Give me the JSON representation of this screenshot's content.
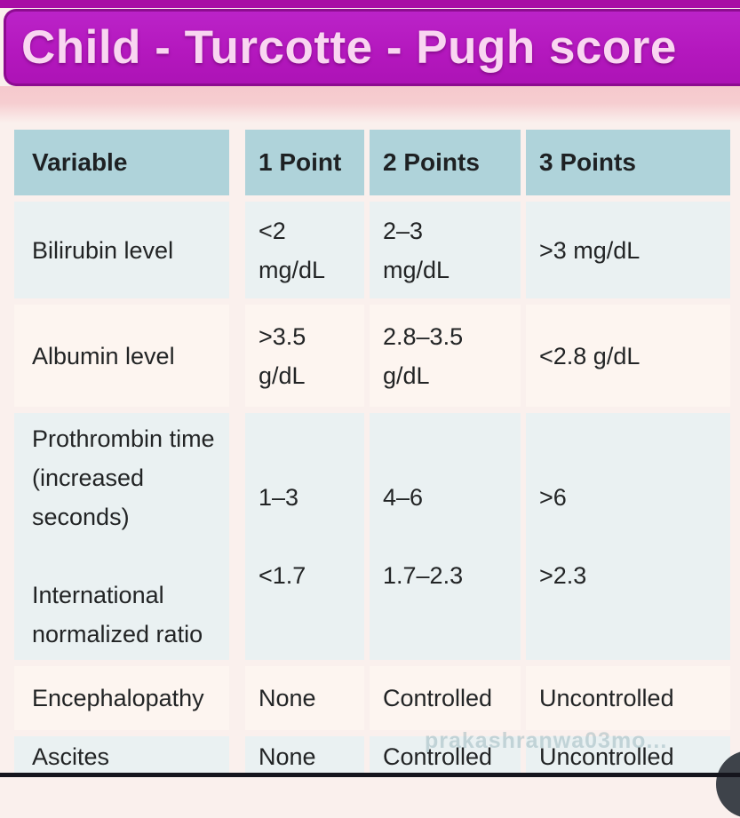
{
  "title": "Child - Turcotte - Pugh score",
  "watermark": "prakashranwa03mo...",
  "colors": {
    "banner_fill": "#b418be",
    "banner_border": "#8d0c90",
    "banner_text": "#f9d6f1",
    "top_strip": "#a80da5",
    "pink_band": "#f5c9cd",
    "header_cell": "#afd3da",
    "row_blue": "#eaf1f2",
    "row_pink": "#fdf5f0",
    "page_background": "#faf0ed",
    "bottom_bar": "#15151d",
    "fab_circle": "#3e434a"
  },
  "table": {
    "headers": [
      "Variable",
      "1 Point",
      "2 Points",
      "3 Points"
    ],
    "rows": [
      {
        "variable": "Bilirubin level",
        "p1": "<2\nmg/dL",
        "p2": "2–3\nmg/dL",
        "p3": ">3 mg/dL"
      },
      {
        "variable": "Albumin level",
        "p1": ">3.5\ng/dL",
        "p2": "2.8–3.5\ng/dL",
        "p3": "<2.8 g/dL"
      },
      {
        "variable": "Prothrombin time (increased seconds)\n\nInternational normalized ratio",
        "p1": "1–3\n\n<1.7",
        "p2": "4–6\n\n1.7–2.3",
        "p3": ">6\n\n>2.3"
      },
      {
        "variable": "Encephalopathy",
        "p1": "None",
        "p2": "Controlled",
        "p3": "Uncontrolled"
      },
      {
        "variable": "Ascites",
        "p1": "None",
        "p2": "Controlled",
        "p3": "Uncontrolled"
      }
    ]
  }
}
